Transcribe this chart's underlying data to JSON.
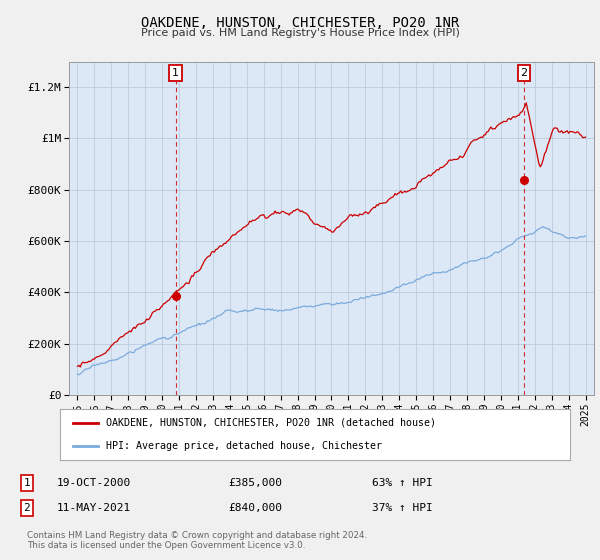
{
  "title": "OAKDENE, HUNSTON, CHICHESTER, PO20 1NR",
  "subtitle": "Price paid vs. HM Land Registry's House Price Index (HPI)",
  "ylim": [
    0,
    1300000
  ],
  "xlim": [
    1994.5,
    2025.5
  ],
  "yticks": [
    0,
    200000,
    400000,
    600000,
    800000,
    1000000,
    1200000
  ],
  "ytick_labels": [
    "£0",
    "£200K",
    "£400K",
    "£600K",
    "£800K",
    "£1M",
    "£1.2M"
  ],
  "xticks": [
    1995,
    1996,
    1997,
    1998,
    1999,
    2000,
    2001,
    2002,
    2003,
    2004,
    2005,
    2006,
    2007,
    2008,
    2009,
    2010,
    2011,
    2012,
    2013,
    2014,
    2015,
    2016,
    2017,
    2018,
    2019,
    2020,
    2021,
    2022,
    2023,
    2024,
    2025
  ],
  "background_color": "#f0f0f0",
  "plot_bg_color": "#dce8f5",
  "grid_color": "#bbccdd",
  "red_line_color": "#cc0000",
  "blue_line_color": "#7aabdc",
  "vline_color": "#cc0000",
  "marker1_x": 2000.8,
  "marker1_y": 385000,
  "marker1_label": "1",
  "marker1_date": "19-OCT-2000",
  "marker1_price": "£385,000",
  "marker1_hpi": "63% ↑ HPI",
  "marker2_x": 2021.36,
  "marker2_y": 840000,
  "marker2_label": "2",
  "marker2_date": "11-MAY-2021",
  "marker2_price": "£840,000",
  "marker2_hpi": "37% ↑ HPI",
  "legend_label_red": "OAKDENE, HUNSTON, CHICHESTER, PO20 1NR (detached house)",
  "legend_label_blue": "HPI: Average price, detached house, Chichester",
  "footer": "Contains HM Land Registry data © Crown copyright and database right 2024.\nThis data is licensed under the Open Government Licence v3.0."
}
